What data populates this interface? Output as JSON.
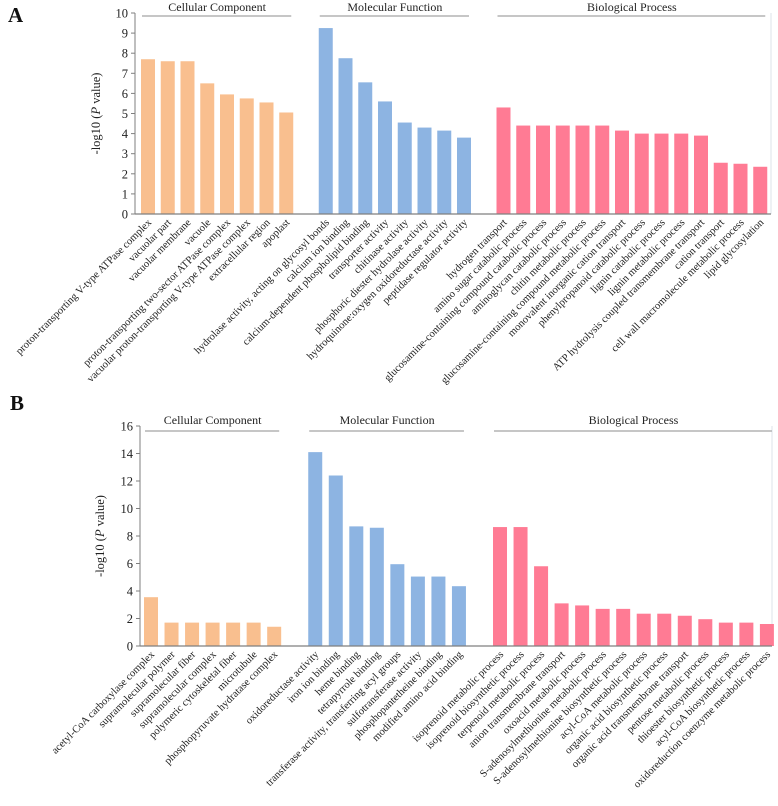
{
  "colors": {
    "Cellular Component": "#f9bf8f",
    "Molecular Function": "#8db4e2",
    "Biological Process": "#ff7b94",
    "axis": "#7f7f7f"
  },
  "chart_data": [
    {
      "panel": "A",
      "type": "bar",
      "ylabel": "-log10 (P value)",
      "ylim": [
        0,
        10
      ],
      "yticks": [
        0,
        1,
        2,
        3,
        4,
        5,
        6,
        7,
        8,
        9,
        10
      ],
      "grid": false,
      "groups": [
        {
          "name": "Cellular Component",
          "categories": [
            "proton-transporting V-type ATPase complex",
            "vacuolar part",
            "vacuolar membrane",
            "vacuole",
            "proton-transporting two-sector ATPase complex",
            "vacuolar proton-transporting V-type ATPase complex",
            "extracellular region",
            "apoplast"
          ],
          "values": [
            7.7,
            7.6,
            7.6,
            6.5,
            5.95,
            5.75,
            5.55,
            5.05
          ]
        },
        {
          "name": "Molecular Function",
          "categories": [
            "hydrolase activity, acting on glycosyl bonds",
            "calcium ion binding",
            "calcium-dependent phospholipid binding",
            "transporter activity",
            "chitinase activity",
            "phosphoric diester hydrolase activity",
            "hydroquinone:oxygen oxidoreductase activity",
            "peptidase regulator activity"
          ],
          "values": [
            9.25,
            7.75,
            6.55,
            5.6,
            4.55,
            4.3,
            4.15,
            3.8
          ]
        },
        {
          "name": "Biological Process",
          "categories": [
            "hydrogen transport",
            "amino sugar catabolic process",
            "glucosamine-containing compound catabolic process",
            "aminoglycan catabolic process",
            "chitin metabolic process",
            "glucosamine-containing compound metabolic process",
            "monovalent inorganic cation transport",
            "phenylpropanoid catabolic process",
            "lignin catabolic process",
            "lignin metabolic process",
            "ATP hydrolysis coupled transmembrane transport",
            "cation transport",
            "cell wall macromolecule metabolic process",
            "lipid glycosylation"
          ],
          "values": [
            5.3,
            4.4,
            4.4,
            4.4,
            4.4,
            4.4,
            4.15,
            4.0,
            4.0,
            4.0,
            3.9,
            2.55,
            2.5,
            2.35
          ]
        }
      ]
    },
    {
      "panel": "B",
      "type": "bar",
      "ylabel": "-log10 (P value)",
      "ylim": [
        0,
        16
      ],
      "yticks": [
        0,
        2,
        4,
        6,
        8,
        10,
        12,
        14,
        16
      ],
      "grid": false,
      "groups": [
        {
          "name": "Cellular Component",
          "categories": [
            "acetyl-CoA carboxylase complex",
            "supramolecular polymer",
            "supramolecular fiber",
            "supramolecular complex",
            "polymeric cytoskeletal fiber",
            "microtubule",
            "phosphopyruvate hydratase complex"
          ],
          "values": [
            3.55,
            1.7,
            1.7,
            1.7,
            1.7,
            1.7,
            1.4
          ]
        },
        {
          "name": "Molecular Function",
          "categories": [
            "oxidoreductase activity",
            "iron ion binding",
            "heme binding",
            "tetrapyrrole binding",
            "transferase activity, transferring acyl groups",
            "sulfotransferase activity",
            "phosphopantetheine binding",
            "modified amino acid binding"
          ],
          "values": [
            14.1,
            12.4,
            8.7,
            8.6,
            5.95,
            5.05,
            5.05,
            4.35
          ]
        },
        {
          "name": "Biological Process",
          "categories": [
            "isoprenoid metabolic process",
            "isoprenoid biosynthetic process",
            "terpenoid metabolic process",
            "anion transmembrane transport",
            "oxoacid metabolic process",
            "S-adenosylmethionine metabolic process",
            "S-adenosylmethionine biosynthetic process",
            "acyl-CoA metabolic process",
            "organic acid biosynthetic process",
            "organic acid transmembrane transport",
            "pentose metabolic process",
            "thioester biosynthetic process",
            "acyl-CoA biosynthetic process",
            "oxidoreduction coenzyme metabolic process"
          ],
          "values": [
            8.65,
            8.65,
            5.8,
            3.1,
            2.95,
            2.7,
            2.7,
            2.35,
            2.35,
            2.2,
            1.95,
            1.7,
            1.7,
            1.6
          ]
        }
      ]
    }
  ]
}
